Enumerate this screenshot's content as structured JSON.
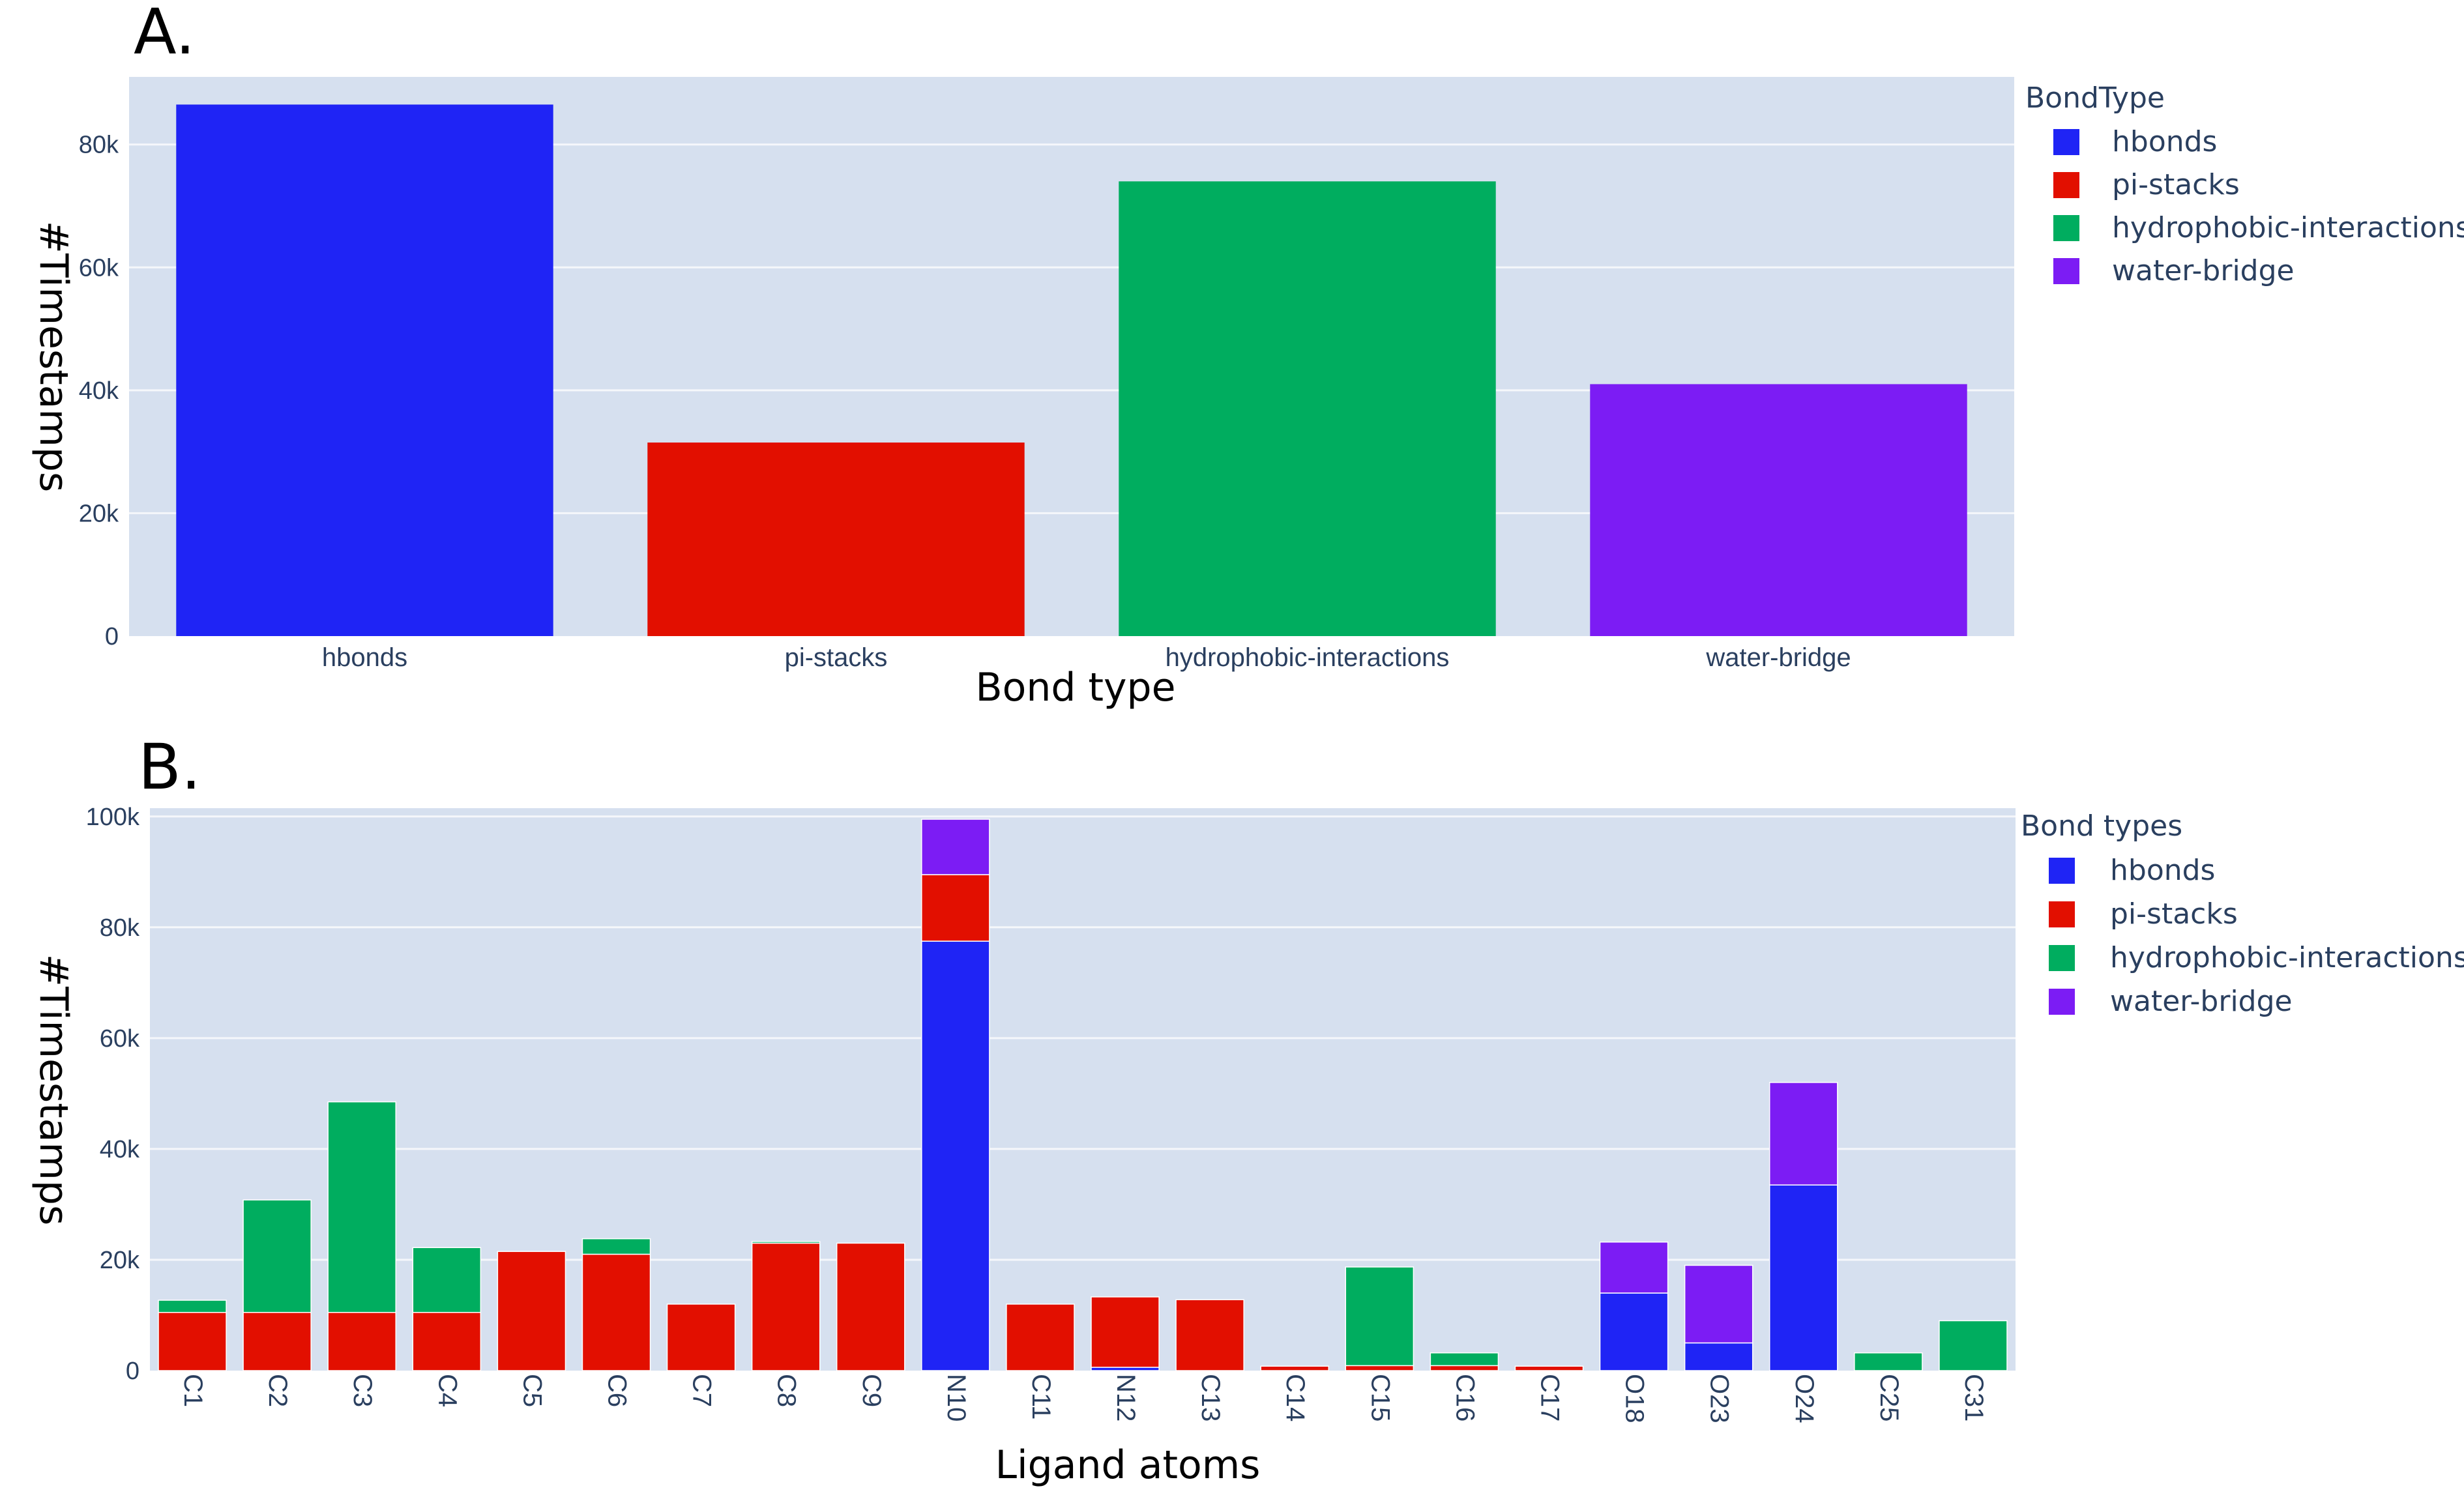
{
  "chart_data": [
    {
      "panel_label": "A.",
      "type": "bar",
      "categories": [
        "hbonds",
        "pi-stacks",
        "hydrophobic-interactions",
        "water-bridge"
      ],
      "values": [
        86500,
        31500,
        74000,
        41000
      ],
      "xlabel": "Bond type",
      "ylabel": "#Timestamps",
      "ylim": [
        0,
        91000
      ],
      "yticks": [
        0,
        20000,
        40000,
        60000,
        80000
      ],
      "ytick_labels": [
        "0",
        "20k",
        "40k",
        "60k",
        "80k"
      ],
      "grid": true,
      "legend_title": "BondType",
      "legend_position": "right",
      "legend": [
        "hbonds",
        "pi-stacks",
        "hydrophobic-interactions",
        "water-bridge"
      ]
    },
    {
      "panel_label": "B.",
      "type": "bar",
      "stacked": true,
      "categories": [
        "C1",
        "C2",
        "C3",
        "C4",
        "C5",
        "C6",
        "C7",
        "C8",
        "C9",
        "N10",
        "C11",
        "N12",
        "C13",
        "C14",
        "C15",
        "C16",
        "C17",
        "O18",
        "O23",
        "O24",
        "C25",
        "C31"
      ],
      "series": [
        {
          "name": "hbonds",
          "values": [
            0,
            0,
            0,
            0,
            0,
            0,
            0,
            0,
            0,
            77500,
            0,
            600,
            0,
            0,
            0,
            0,
            0,
            14000,
            5000,
            33500,
            0,
            0
          ]
        },
        {
          "name": "pi-stacks",
          "values": [
            10500,
            10500,
            10500,
            10500,
            21500,
            21000,
            12000,
            23000,
            23000,
            12000,
            12000,
            12700,
            12800,
            800,
            900,
            900,
            800,
            0,
            0,
            0,
            0,
            0
          ]
        },
        {
          "name": "hydrophobic-interactions",
          "values": [
            2200,
            20300,
            38000,
            11700,
            0,
            2800,
            0,
            300,
            0,
            0,
            0,
            0,
            0,
            0,
            17800,
            2300,
            0,
            0,
            0,
            0,
            3200,
            9000
          ]
        },
        {
          "name": "water-bridge",
          "values": [
            0,
            0,
            0,
            0,
            0,
            0,
            0,
            0,
            0,
            10000,
            0,
            0,
            0,
            0,
            0,
            0,
            0,
            9200,
            14000,
            18500,
            0,
            0
          ]
        }
      ],
      "xlabel": "Ligand atoms",
      "ylabel": "#Timestamps",
      "ylim": [
        0,
        101500
      ],
      "yticks": [
        0,
        20000,
        40000,
        60000,
        80000,
        100000
      ],
      "ytick_labels": [
        "0",
        "20k",
        "40k",
        "60k",
        "80k",
        "100k"
      ],
      "grid": true,
      "legend_title": "Bond types",
      "legend_position": "right",
      "legend": [
        "hbonds",
        "pi-stacks",
        "hydrophobic-interactions",
        "water-bridge"
      ]
    }
  ],
  "colors": {
    "hbonds": "#1f24f5",
    "pi-stacks": "#e20f00",
    "hydrophobic-interactions": "#00ad5f",
    "water-bridge": "#7c1cf4",
    "plot_bg": "#d6e0ef",
    "grid": "#f5f7fb"
  }
}
